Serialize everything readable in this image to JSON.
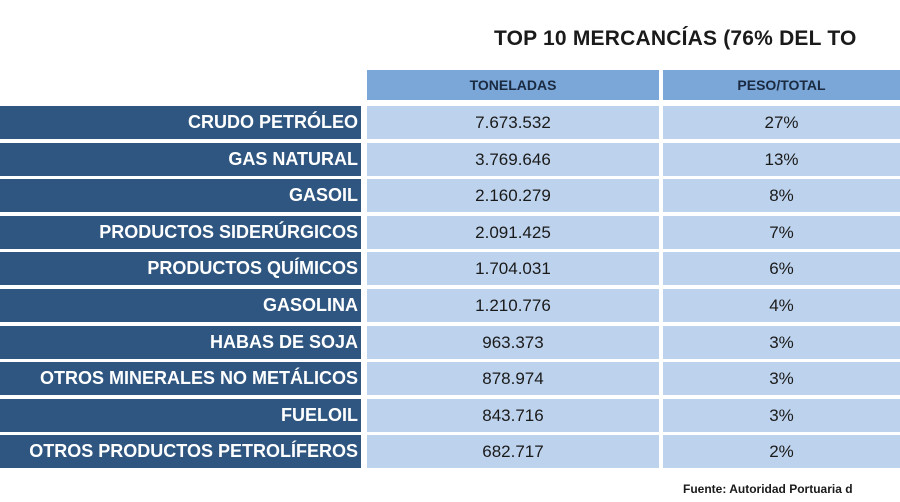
{
  "chart_data": {
    "type": "table",
    "title": "TOP 10 MERCANCÍAS (76% DEL TO",
    "columns": [
      "TONELADAS",
      "PESO/TOTAL"
    ],
    "rows": [
      {
        "label": "CRUDO PETRÓLEO",
        "toneladas": "7.673.532",
        "peso": "27%"
      },
      {
        "label": "GAS NATURAL",
        "toneladas": "3.769.646",
        "peso": "13%"
      },
      {
        "label": "GASOIL",
        "toneladas": "2.160.279",
        "peso": "8%"
      },
      {
        "label": "PRODUCTOS SIDERÚRGICOS",
        "toneladas": "2.091.425",
        "peso": "7%"
      },
      {
        "label": "PRODUCTOS QUÍMICOS",
        "toneladas": "1.704.031",
        "peso": "6%"
      },
      {
        "label": "GASOLINA",
        "toneladas": "1.210.776",
        "peso": "4%"
      },
      {
        "label": "HABAS DE SOJA",
        "toneladas": "963.373",
        "peso": "3%"
      },
      {
        "label": "OTROS MINERALES NO METÁLICOS",
        "toneladas": "878.974",
        "peso": "3%"
      },
      {
        "label": "FUELOIL",
        "toneladas": "843.716",
        "peso": "3%"
      },
      {
        "label": "OTROS PRODUCTOS PETROLÍFEROS",
        "toneladas": "682.717",
        "peso": "2%"
      }
    ],
    "source": "Fuente: Autoridad Portuaria d",
    "colors": {
      "label_bg": "#2f5680",
      "header_bg": "#7aa6d8",
      "cell_bg": "#bdd2ec"
    }
  }
}
